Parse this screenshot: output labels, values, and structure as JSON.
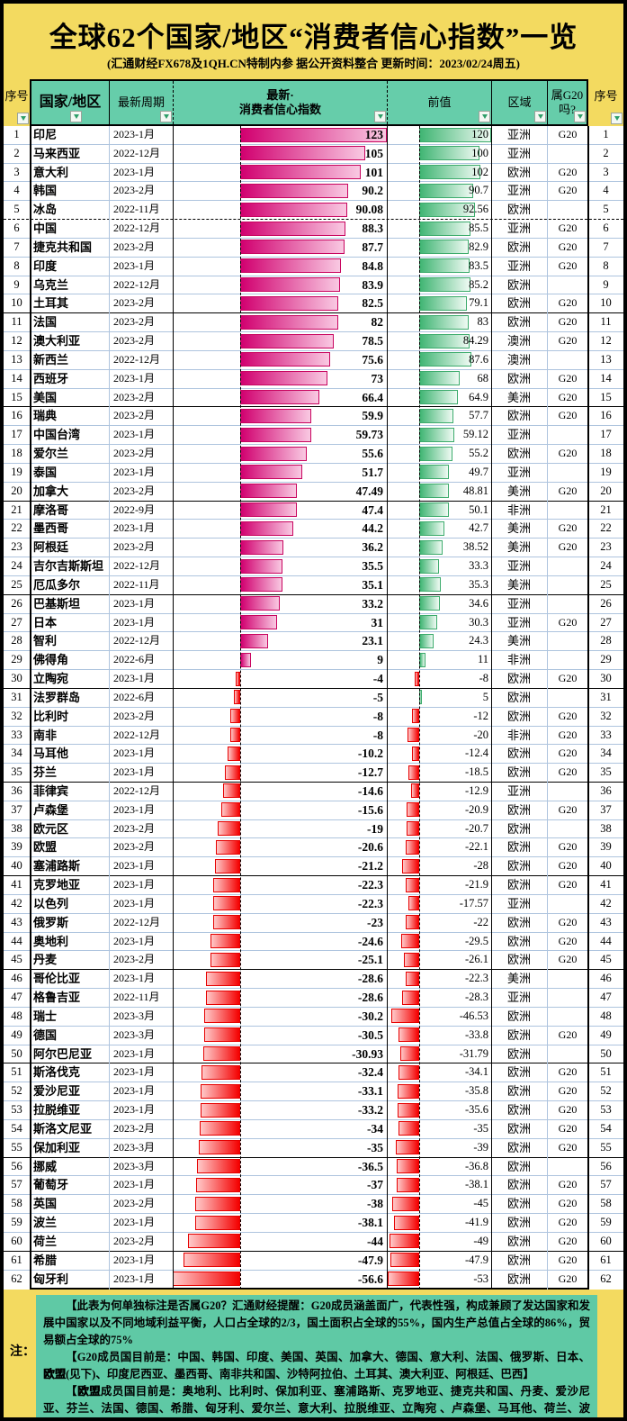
{
  "title": "全球62个国家/地区“消费者信心指数”一览",
  "subtitle": "(汇通财经FX678及1QH.CN特制内参 据公开资料整合 更新时间：2023/02/24周五)",
  "columns": {
    "seq_left": {
      "label": "序号"
    },
    "country": {
      "label": "国家/地区"
    },
    "period": {
      "label": "最新周期"
    },
    "latest": {
      "line1": "最新·",
      "line2": "消费者信心指数"
    },
    "prev": {
      "label": "前值"
    },
    "region": {
      "label": "区域"
    },
    "g20": {
      "line1": "属G20",
      "line2": "吗?"
    },
    "seq_right": {
      "label": "序号"
    }
  },
  "row_fields": [
    "seq",
    "country",
    "period",
    "latest",
    "prev",
    "region",
    "g20"
  ],
  "rows": [
    [
      1,
      "印尼",
      "2023-1月",
      "123",
      "120",
      "亚洲",
      "G20"
    ],
    [
      2,
      "马来西亚",
      "2022-12月",
      "105",
      "100",
      "亚洲",
      ""
    ],
    [
      3,
      "意大利",
      "2023-1月",
      "101",
      "102",
      "欧洲",
      "G20"
    ],
    [
      4,
      "韩国",
      "2023-2月",
      "90.2",
      "90.7",
      "亚洲",
      "G20"
    ],
    [
      5,
      "冰岛",
      "2022-11月",
      "90.08",
      "92.56",
      "欧洲",
      ""
    ],
    [
      6,
      "中国",
      "2022-12月",
      "88.3",
      "85.5",
      "亚洲",
      "G20"
    ],
    [
      7,
      "捷克共和国",
      "2023-2月",
      "87.7",
      "82.9",
      "欧洲",
      "G20"
    ],
    [
      8,
      "印度",
      "2023-1月",
      "84.8",
      "83.5",
      "亚洲",
      "G20"
    ],
    [
      9,
      "乌克兰",
      "2022-12月",
      "83.9",
      "85.2",
      "欧洲",
      ""
    ],
    [
      10,
      "土耳其",
      "2023-2月",
      "82.5",
      "79.1",
      "欧洲",
      "G20"
    ],
    [
      11,
      "法国",
      "2023-2月",
      "82",
      "83",
      "欧洲",
      "G20"
    ],
    [
      12,
      "澳大利亚",
      "2023-2月",
      "78.5",
      "84.29",
      "澳洲",
      "G20"
    ],
    [
      13,
      "新西兰",
      "2022-12月",
      "75.6",
      "87.6",
      "澳洲",
      ""
    ],
    [
      14,
      "西班牙",
      "2023-1月",
      "73",
      "68",
      "欧洲",
      "G20"
    ],
    [
      15,
      "美国",
      "2023-2月",
      "66.4",
      "64.9",
      "美洲",
      "G20"
    ],
    [
      16,
      "瑞典",
      "2023-2月",
      "59.9",
      "57.7",
      "欧洲",
      "G20"
    ],
    [
      17,
      "中国台湾",
      "2023-1月",
      "59.73",
      "59.12",
      "亚洲",
      ""
    ],
    [
      18,
      "爱尔兰",
      "2023-2月",
      "55.6",
      "55.2",
      "欧洲",
      "G20"
    ],
    [
      19,
      "泰国",
      "2023-1月",
      "51.7",
      "49.7",
      "亚洲",
      ""
    ],
    [
      20,
      "加拿大",
      "2023-2月",
      "47.49",
      "48.81",
      "美洲",
      "G20"
    ],
    [
      21,
      "摩洛哥",
      "2022-9月",
      "47.4",
      "50.1",
      "非洲",
      ""
    ],
    [
      22,
      "墨西哥",
      "2023-1月",
      "44.2",
      "42.7",
      "美洲",
      "G20"
    ],
    [
      23,
      "阿根廷",
      "2023-2月",
      "36.2",
      "38.52",
      "美洲",
      "G20"
    ],
    [
      24,
      "吉尔吉斯斯坦",
      "2022-12月",
      "35.5",
      "33.3",
      "亚洲",
      ""
    ],
    [
      25,
      "厄瓜多尔",
      "2022-11月",
      "35.1",
      "35.3",
      "美洲",
      ""
    ],
    [
      26,
      "巴基斯坦",
      "2023-1月",
      "33.2",
      "34.6",
      "亚洲",
      ""
    ],
    [
      27,
      "日本",
      "2023-1月",
      "31",
      "30.3",
      "亚洲",
      "G20"
    ],
    [
      28,
      "智利",
      "2022-12月",
      "23.1",
      "24.3",
      "美洲",
      ""
    ],
    [
      29,
      "佛得角",
      "2022-6月",
      "9",
      "11",
      "非洲",
      ""
    ],
    [
      30,
      "立陶宛",
      "2023-1月",
      "-4",
      "-8",
      "欧洲",
      "G20"
    ],
    [
      31,
      "法罗群岛",
      "2022-6月",
      "-5",
      "5",
      "欧洲",
      ""
    ],
    [
      32,
      "比利时",
      "2023-2月",
      "-8",
      "-12",
      "欧洲",
      "G20"
    ],
    [
      33,
      "南非",
      "2022-12月",
      "-8",
      "-20",
      "非洲",
      "G20"
    ],
    [
      34,
      "马耳他",
      "2023-1月",
      "-10.2",
      "-12.4",
      "欧洲",
      "G20"
    ],
    [
      35,
      "芬兰",
      "2023-1月",
      "-12.7",
      "-18.5",
      "欧洲",
      "G20"
    ],
    [
      36,
      "菲律宾",
      "2022-12月",
      "-14.6",
      "-12.9",
      "亚洲",
      ""
    ],
    [
      37,
      "卢森堡",
      "2023-1月",
      "-15.6",
      "-20.9",
      "欧洲",
      "G20"
    ],
    [
      38,
      "欧元区",
      "2023-2月",
      "-19",
      "-20.7",
      "欧洲",
      ""
    ],
    [
      39,
      "欧盟",
      "2023-2月",
      "-20.6",
      "-22.1",
      "欧洲",
      "G20"
    ],
    [
      40,
      "塞浦路斯",
      "2023-1月",
      "-21.2",
      "-28",
      "欧洲",
      "G20"
    ],
    [
      41,
      "克罗地亚",
      "2023-1月",
      "-22.3",
      "-21.9",
      "欧洲",
      "G20"
    ],
    [
      42,
      "以色列",
      "2023-1月",
      "-22.3",
      "-17.57",
      "亚洲",
      ""
    ],
    [
      43,
      "俄罗斯",
      "2022-12月",
      "-23",
      "-22",
      "欧洲",
      "G20"
    ],
    [
      44,
      "奥地利",
      "2023-1月",
      "-24.6",
      "-29.5",
      "欧洲",
      "G20"
    ],
    [
      45,
      "丹麦",
      "2023-2月",
      "-25.1",
      "-26.1",
      "欧洲",
      "G20"
    ],
    [
      46,
      "哥伦比亚",
      "2023-1月",
      "-28.6",
      "-22.3",
      "美洲",
      ""
    ],
    [
      47,
      "格鲁吉亚",
      "2022-11月",
      "-28.6",
      "-28.3",
      "亚洲",
      ""
    ],
    [
      48,
      "瑞士",
      "2023-3月",
      "-30.2",
      "-46.53",
      "欧洲",
      ""
    ],
    [
      49,
      "德国",
      "2023-3月",
      "-30.5",
      "-33.8",
      "欧洲",
      "G20"
    ],
    [
      50,
      "阿尔巴尼亚",
      "2023-1月",
      "-30.93",
      "-31.79",
      "欧洲",
      ""
    ],
    [
      51,
      "斯洛伐克",
      "2023-1月",
      "-32.4",
      "-34.1",
      "欧洲",
      "G20"
    ],
    [
      52,
      "爱沙尼亚",
      "2023-1月",
      "-33.1",
      "-35.8",
      "欧洲",
      "G20"
    ],
    [
      53,
      "拉脱维亚",
      "2023-1月",
      "-33.2",
      "-35.6",
      "欧洲",
      "G20"
    ],
    [
      54,
      "斯洛文尼亚",
      "2023-2月",
      "-34",
      "-35",
      "欧洲",
      "G20"
    ],
    [
      55,
      "保加利亚",
      "2023-3月",
      "-35",
      "-39",
      "欧洲",
      "G20"
    ],
    [
      56,
      "挪威",
      "2023-3月",
      "-36.5",
      "-36.8",
      "欧洲",
      ""
    ],
    [
      57,
      "葡萄牙",
      "2023-1月",
      "-37",
      "-38.1",
      "欧洲",
      "G20"
    ],
    [
      58,
      "英国",
      "2023-2月",
      "-38",
      "-45",
      "欧洲",
      "G20"
    ],
    [
      59,
      "波兰",
      "2023-1月",
      "-38.1",
      "-41.9",
      "欧洲",
      "G20"
    ],
    [
      60,
      "荷兰",
      "2023-2月",
      "-44",
      "-49",
      "欧洲",
      "G20"
    ],
    [
      61,
      "希腊",
      "2023-1月",
      "-47.9",
      "-47.9",
      "欧洲",
      "G20"
    ],
    [
      62,
      "匈牙利",
      "2023-1月",
      "-56.6",
      "-53",
      "欧洲",
      "G20"
    ]
  ],
  "bar_axes": {
    "latest": {
      "pos_max": 123,
      "neg_max": 56.6
    },
    "prev": {
      "pos_max": 120,
      "neg_max": 53
    }
  },
  "notes": {
    "label": "注：",
    "p1": "【此表为何单独标注是否属G20？汇通财经提醒：G20成员涵盖面广，代表性强，构成兼顾了发达国家和发展中国家以及不同地域利益平衡，人口占全球的2/3，国土面积占全球的55%，国内生产总值占全球的86%，贸易额占全球的75%",
    "p2": {
      "pre": "【G20成员国目前是：中国、韩国、印度、美国、英国、加拿大、德国、意大利、法国、俄罗斯、日本、",
      "bold": "欧盟",
      "post": "(见下)、印度尼西亚、墨西哥、南非共和国、沙特阿拉伯、土耳其、澳大利亚、阿根廷、巴西】"
    },
    "p3": {
      "pre": "【",
      "bold": "欧盟",
      "post": "成员国目前是：奥地利、比利时、保加利亚、塞浦路斯、克罗地亚、捷克共和国、丹麦、爱沙尼亚、芬兰、法国、德国、希腊、匈牙利、爱尔兰、意大利、拉脱维亚、立陶宛 、卢森堡、马耳他、荷兰、波兰、葡萄牙、罗马尼亚、斯洛伐克、斯洛文尼亚、西班牙、瑞典】"
    }
  },
  "colors": {
    "page_bg": "#F3DA60",
    "header_bg": "#66CDAA",
    "notes_bg": "#5FC9A5",
    "bar_positive_latest": "#D1006F",
    "bar_positive_prev": "#40B573",
    "bar_negative": "#F40000",
    "gridline": "#AEC4DE"
  }
}
